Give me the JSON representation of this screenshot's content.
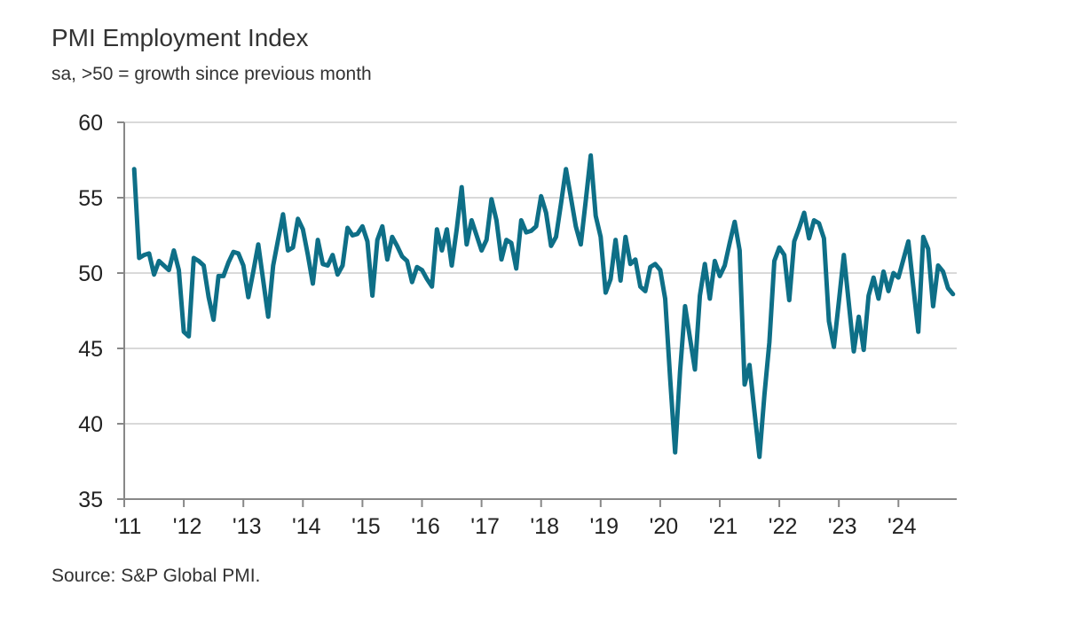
{
  "chart_data": {
    "type": "line",
    "title": "PMI Employment Index",
    "subtitle": "sa, >50 = growth since previous month",
    "source": "Source: S&P Global PMI.",
    "xlabel": "",
    "ylabel": "",
    "ylim": [
      35,
      60
    ],
    "yticks": [
      "60",
      "55",
      "50",
      "45",
      "40",
      "35"
    ],
    "xticks": [
      "'11",
      "'12",
      "'13",
      "'14",
      "'15",
      "'16",
      "'17",
      "'18",
      "'19",
      "'20",
      "'21",
      "'22",
      "'23",
      "'24"
    ],
    "x_range": [
      "2011-01",
      "2024-12"
    ],
    "grid": "horizontal",
    "line_color": "#0e6f87",
    "series": [
      {
        "start": "2011-03",
        "frequency": "monthly",
        "values": [
          56.9,
          51.0,
          51.2,
          51.3,
          49.9,
          50.8,
          50.5,
          50.2,
          51.5,
          50.2,
          46.1,
          45.8,
          51.0,
          50.8,
          50.5,
          48.4,
          46.9,
          49.8,
          49.8,
          50.7,
          51.4,
          51.3,
          50.5,
          48.4,
          50.1,
          51.9,
          49.5,
          47.1,
          50.5,
          52.2,
          53.9,
          51.5,
          51.7,
          53.6,
          52.9,
          51.2,
          49.3,
          52.2,
          50.6,
          50.5,
          51.2,
          49.9,
          50.5,
          53.0,
          52.5,
          52.6,
          53.1,
          52.1,
          48.5,
          52.2,
          53.1,
          50.9,
          52.4,
          51.8,
          51.1,
          50.8,
          49.4,
          50.4,
          50.2,
          49.6,
          49.1,
          52.9,
          51.5,
          52.9,
          50.5,
          52.9,
          55.7,
          51.9,
          53.5,
          52.5,
          51.5,
          52.2,
          54.9,
          53.5,
          50.9,
          52.2,
          52.0,
          50.3,
          53.5,
          52.7,
          52.8,
          53.1,
          55.1,
          54.0,
          51.8,
          52.4,
          54.6,
          56.9,
          55.0,
          53.1,
          51.9,
          54.8,
          57.8,
          53.8,
          52.4,
          48.7,
          49.6,
          52.2,
          49.5,
          52.4,
          50.6,
          50.9,
          49.1,
          48.8,
          50.4,
          50.6,
          50.2,
          48.3,
          43.0,
          38.1,
          43.5,
          47.8,
          45.7,
          43.6,
          48.5,
          50.6,
          48.3,
          50.8,
          49.8,
          50.5,
          52.0,
          53.4,
          51.5,
          42.6,
          43.9,
          40.8,
          37.8,
          41.9,
          45.4,
          50.8,
          51.7,
          51.2,
          48.2,
          52.1,
          53.0,
          54.0,
          52.3,
          53.5,
          53.3,
          52.3,
          46.8,
          45.1,
          48.1,
          51.2,
          48.0,
          44.8,
          47.1,
          44.9,
          48.5,
          49.7,
          48.3,
          50.1,
          48.8,
          50.0,
          49.7,
          50.9,
          52.1,
          49.1,
          46.1,
          52.4,
          51.6,
          47.8,
          50.5,
          50.1,
          49.0,
          48.6
        ]
      }
    ]
  }
}
